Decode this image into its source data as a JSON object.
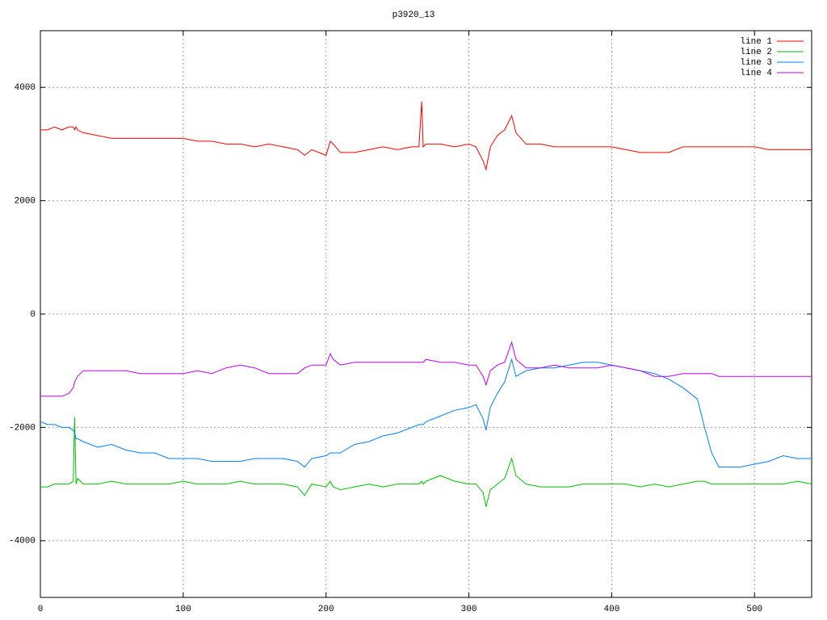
{
  "chart_data": {
    "type": "line",
    "title": "p3920_13",
    "x": [
      0,
      5,
      10,
      15,
      20,
      23,
      24,
      25,
      26,
      30,
      40,
      50,
      60,
      70,
      80,
      90,
      100,
      110,
      120,
      130,
      140,
      150,
      160,
      170,
      180,
      185,
      190,
      200,
      203,
      205,
      210,
      220,
      230,
      240,
      250,
      260,
      265,
      267,
      268,
      270,
      280,
      290,
      300,
      305,
      310,
      312,
      315,
      320,
      325,
      330,
      333,
      340,
      350,
      360,
      370,
      380,
      390,
      400,
      410,
      420,
      430,
      440,
      450,
      460,
      465,
      470,
      475,
      480,
      490,
      500,
      510,
      520,
      530,
      540
    ],
    "series": [
      {
        "name": "line 1",
        "color": "#ff0000",
        "values": [
          3250,
          3250,
          3300,
          3250,
          3300,
          3300,
          3250,
          3300,
          3250,
          3200,
          3150,
          3100,
          3100,
          3100,
          3100,
          3100,
          3100,
          3050,
          3050,
          3000,
          3000,
          2950,
          3000,
          2950,
          2900,
          2800,
          2900,
          2800,
          3050,
          3000,
          2850,
          2850,
          2900,
          2950,
          2900,
          2950,
          2950,
          3750,
          2950,
          3000,
          3000,
          2950,
          3000,
          2950,
          2700,
          2550,
          2950,
          3150,
          3250,
          3500,
          3200,
          3000,
          3000,
          2950,
          2950,
          2950,
          2950,
          2950,
          2900,
          2850,
          2850,
          2850,
          2950,
          2950,
          2950,
          2950,
          2950,
          2950,
          2950,
          2950,
          2900,
          2900,
          2900,
          2900
        ]
      },
      {
        "name": "line 2",
        "color": "#00c000",
        "values": [
          -3050,
          -3050,
          -3000,
          -3000,
          -3000,
          -2950,
          -1820,
          -3000,
          -2900,
          -3000,
          -3000,
          -2950,
          -3000,
          -3000,
          -3000,
          -3000,
          -2950,
          -3000,
          -3000,
          -3000,
          -2950,
          -3000,
          -3000,
          -3000,
          -3050,
          -3200,
          -3000,
          -3050,
          -2950,
          -3050,
          -3100,
          -3050,
          -3000,
          -3050,
          -3000,
          -3000,
          -3000,
          -2950,
          -3000,
          -2950,
          -2850,
          -2950,
          -3000,
          -3000,
          -3150,
          -3400,
          -3100,
          -3000,
          -2900,
          -2550,
          -2850,
          -3000,
          -3050,
          -3050,
          -3050,
          -3000,
          -3000,
          -3000,
          -3000,
          -3050,
          -3000,
          -3050,
          -3000,
          -2950,
          -2950,
          -3000,
          -3000,
          -3000,
          -3000,
          -3000,
          -3000,
          -3000,
          -2950,
          -3000
        ]
      },
      {
        "name": "line 3",
        "color": "#0080ff",
        "values": [
          -1900,
          -1950,
          -1950,
          -2000,
          -2000,
          -2050,
          -2100,
          -2200,
          -2200,
          -2250,
          -2350,
          -2300,
          -2400,
          -2450,
          -2450,
          -2550,
          -2550,
          -2550,
          -2600,
          -2600,
          -2600,
          -2550,
          -2550,
          -2550,
          -2600,
          -2700,
          -2550,
          -2500,
          -2450,
          -2450,
          -2450,
          -2300,
          -2250,
          -2150,
          -2100,
          -2000,
          -1950,
          -1950,
          -1950,
          -1900,
          -1800,
          -1700,
          -1650,
          -1600,
          -1850,
          -2050,
          -1650,
          -1400,
          -1200,
          -800,
          -1100,
          -1000,
          -950,
          -950,
          -900,
          -850,
          -850,
          -900,
          -950,
          -1000,
          -1050,
          -1150,
          -1300,
          -1500,
          -2000,
          -2450,
          -2700,
          -2700,
          -2700,
          -2650,
          -2600,
          -2500,
          -2550,
          -2550
        ]
      },
      {
        "name": "line 4",
        "color": "#c000ff",
        "values": [
          -1450,
          -1450,
          -1450,
          -1450,
          -1400,
          -1300,
          -1200,
          -1150,
          -1100,
          -1000,
          -1000,
          -1000,
          -1000,
          -1050,
          -1050,
          -1050,
          -1050,
          -1000,
          -1050,
          -950,
          -900,
          -950,
          -1050,
          -1050,
          -1050,
          -950,
          -900,
          -900,
          -700,
          -800,
          -900,
          -850,
          -850,
          -850,
          -850,
          -850,
          -850,
          -850,
          -850,
          -800,
          -850,
          -850,
          -900,
          -900,
          -1100,
          -1250,
          -1000,
          -900,
          -850,
          -500,
          -800,
          -950,
          -950,
          -900,
          -950,
          -950,
          -950,
          -900,
          -950,
          -1000,
          -1100,
          -1100,
          -1050,
          -1050,
          -1050,
          -1050,
          -1100,
          -1100,
          -1100,
          -1100,
          -1100,
          -1100,
          -1100,
          -1100
        ]
      }
    ],
    "xlim": [
      0,
      540
    ],
    "ylim": [
      -5000,
      5000
    ],
    "xticks": [
      0,
      100,
      200,
      300,
      400,
      500
    ],
    "yticks": [
      -4000,
      -2000,
      0,
      2000,
      4000
    ],
    "grid": true,
    "legend": "top right"
  }
}
